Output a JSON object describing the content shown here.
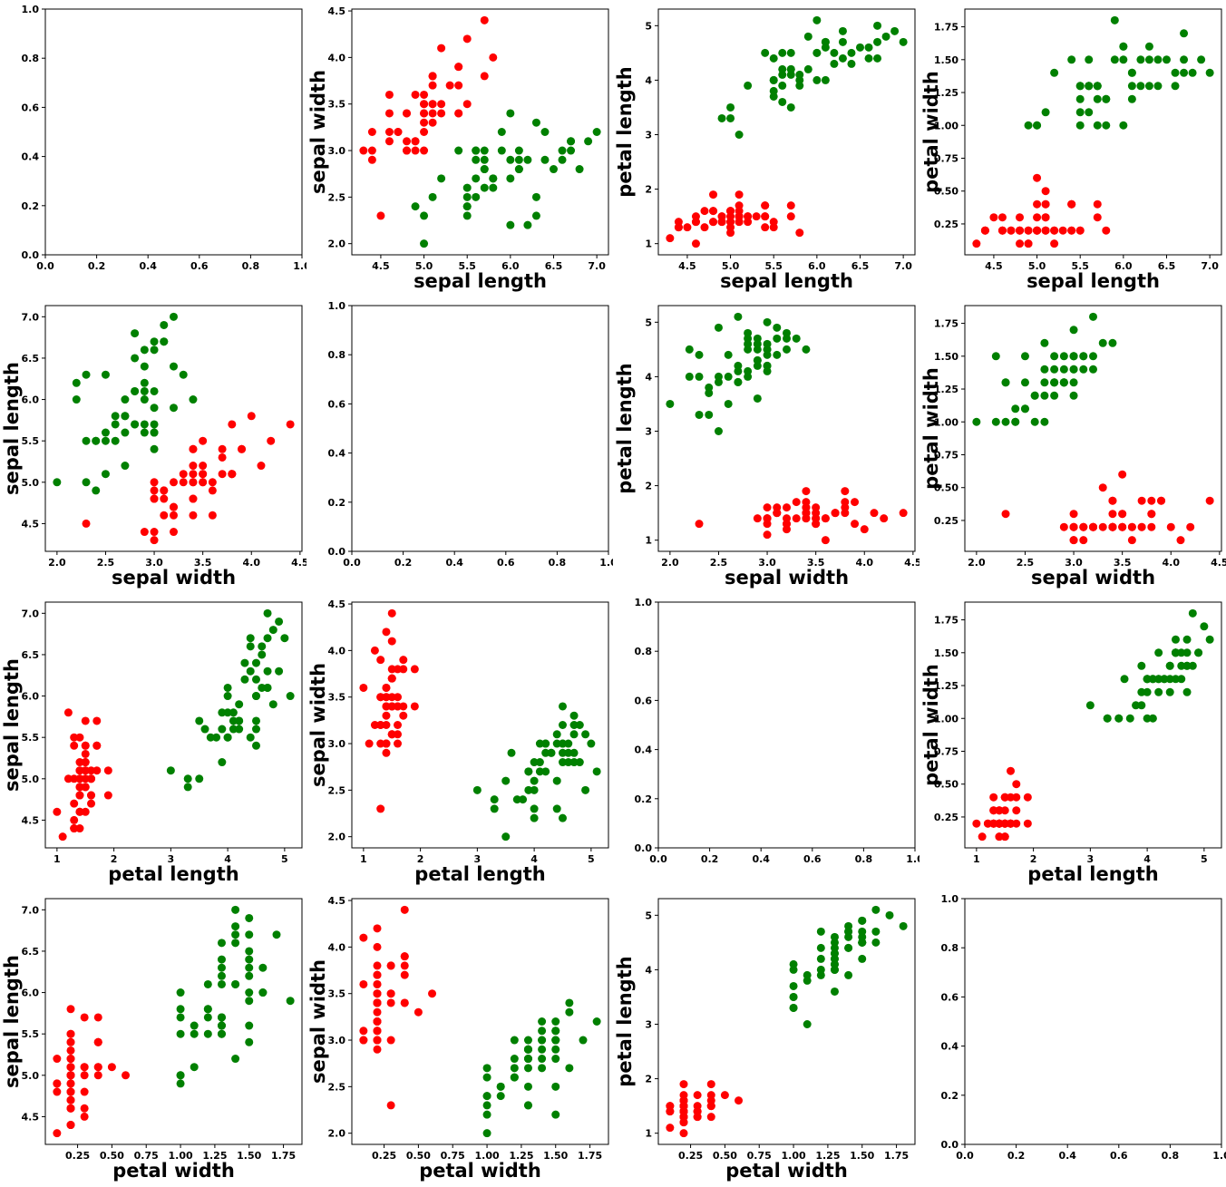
{
  "figure": {
    "title": "",
    "background": "#ffffff",
    "spine_color": "#000000",
    "tick_label_color": "#000000"
  },
  "chart_data": {
    "type": "scatter",
    "description": "4x4 scatter-plot matrix of iris features; row index selects x variable, column index selects y variable; diagonal cells are empty axes 0.0-1.0",
    "variables": [
      "sepal length",
      "sepal width",
      "petal length",
      "petal width"
    ],
    "axes": {
      "sepal length": {
        "lim": [
          4.165,
          7.135
        ],
        "ticks": [
          4.5,
          5.0,
          5.5,
          6.0,
          6.5,
          7.0
        ],
        "tick_labels": [
          "4.5",
          "5.0",
          "5.5",
          "6.0",
          "6.5",
          "7.0"
        ]
      },
      "sepal width": {
        "lim": [
          1.88,
          4.52
        ],
        "ticks": [
          2.0,
          2.5,
          3.0,
          3.5,
          4.0,
          4.5
        ],
        "tick_labels": [
          "2.0",
          "2.5",
          "3.0",
          "3.5",
          "4.0",
          "4.5"
        ]
      },
      "petal length": {
        "lim": [
          0.795,
          5.305
        ],
        "ticks": [
          1,
          2,
          3,
          4,
          5
        ],
        "tick_labels": [
          "1",
          "2",
          "3",
          "4",
          "5"
        ]
      },
      "petal width": {
        "lim": [
          0.015,
          1.885
        ],
        "ticks": [
          0.25,
          0.5,
          0.75,
          1.0,
          1.25,
          1.5,
          1.75
        ],
        "tick_labels": [
          "0.25",
          "0.50",
          "0.75",
          "1.00",
          "1.25",
          "1.50",
          "1.75"
        ]
      }
    },
    "empty_axis": {
      "lim": [
        0,
        1
      ],
      "ticks": [
        0.0,
        0.2,
        0.4,
        0.6,
        0.8,
        1.0
      ],
      "tick_labels": [
        "0.0",
        "0.2",
        "0.4",
        "0.6",
        "0.8",
        "1.0"
      ]
    },
    "layout": {
      "rows": 4,
      "cols": 4,
      "x_variable_by": "row",
      "y_variable_by": "col",
      "diagonal": "empty"
    },
    "series": [
      {
        "name": "class-red",
        "color": "#ff0000",
        "rows": [
          [
            5.1,
            3.5,
            1.4,
            0.2
          ],
          [
            4.9,
            3.0,
            1.4,
            0.2
          ],
          [
            4.7,
            3.2,
            1.3,
            0.2
          ],
          [
            4.6,
            3.1,
            1.5,
            0.2
          ],
          [
            5.0,
            3.6,
            1.4,
            0.2
          ],
          [
            5.4,
            3.9,
            1.7,
            0.4
          ],
          [
            4.6,
            3.4,
            1.4,
            0.3
          ],
          [
            5.0,
            3.4,
            1.5,
            0.2
          ],
          [
            4.4,
            2.9,
            1.4,
            0.2
          ],
          [
            4.9,
            3.1,
            1.5,
            0.1
          ],
          [
            5.4,
            3.7,
            1.5,
            0.2
          ],
          [
            4.8,
            3.4,
            1.6,
            0.2
          ],
          [
            4.8,
            3.0,
            1.4,
            0.1
          ],
          [
            4.3,
            3.0,
            1.1,
            0.1
          ],
          [
            5.8,
            4.0,
            1.2,
            0.2
          ],
          [
            5.7,
            4.4,
            1.5,
            0.4
          ],
          [
            5.4,
            3.9,
            1.3,
            0.4
          ],
          [
            5.1,
            3.5,
            1.4,
            0.3
          ],
          [
            5.7,
            3.8,
            1.7,
            0.3
          ],
          [
            5.1,
            3.8,
            1.5,
            0.3
          ],
          [
            5.4,
            3.4,
            1.7,
            0.2
          ],
          [
            5.1,
            3.7,
            1.5,
            0.4
          ],
          [
            4.6,
            3.6,
            1.0,
            0.2
          ],
          [
            5.1,
            3.3,
            1.7,
            0.5
          ],
          [
            4.8,
            3.4,
            1.9,
            0.2
          ],
          [
            5.0,
            3.0,
            1.6,
            0.2
          ],
          [
            5.0,
            3.4,
            1.6,
            0.4
          ],
          [
            5.2,
            3.5,
            1.5,
            0.2
          ],
          [
            5.2,
            3.4,
            1.4,
            0.2
          ],
          [
            4.7,
            3.2,
            1.6,
            0.2
          ],
          [
            4.8,
            3.1,
            1.6,
            0.2
          ],
          [
            5.4,
            3.4,
            1.5,
            0.4
          ],
          [
            5.2,
            4.1,
            1.5,
            0.1
          ],
          [
            5.5,
            4.2,
            1.4,
            0.2
          ],
          [
            4.9,
            3.1,
            1.5,
            0.2
          ],
          [
            5.0,
            3.2,
            1.2,
            0.2
          ],
          [
            5.5,
            3.5,
            1.3,
            0.2
          ],
          [
            4.9,
            3.6,
            1.4,
            0.1
          ],
          [
            4.4,
            3.0,
            1.3,
            0.2
          ],
          [
            5.1,
            3.4,
            1.5,
            0.2
          ],
          [
            5.0,
            3.5,
            1.3,
            0.3
          ],
          [
            4.5,
            2.3,
            1.3,
            0.3
          ],
          [
            4.4,
            3.2,
            1.3,
            0.2
          ],
          [
            5.0,
            3.5,
            1.6,
            0.6
          ],
          [
            5.1,
            3.8,
            1.9,
            0.4
          ],
          [
            4.8,
            3.0,
            1.4,
            0.3
          ],
          [
            5.1,
            3.8,
            1.6,
            0.2
          ],
          [
            4.6,
            3.2,
            1.4,
            0.2
          ],
          [
            5.3,
            3.7,
            1.5,
            0.2
          ],
          [
            5.0,
            3.3,
            1.4,
            0.2
          ]
        ]
      },
      {
        "name": "class-green",
        "color": "#008000",
        "rows": [
          [
            7.0,
            3.2,
            4.7,
            1.4
          ],
          [
            6.4,
            3.2,
            4.5,
            1.5
          ],
          [
            6.9,
            3.1,
            4.9,
            1.5
          ],
          [
            5.5,
            2.3,
            4.0,
            1.3
          ],
          [
            6.5,
            2.8,
            4.6,
            1.5
          ],
          [
            5.7,
            2.8,
            4.5,
            1.3
          ],
          [
            6.3,
            3.3,
            4.7,
            1.6
          ],
          [
            4.9,
            2.4,
            3.3,
            1.0
          ],
          [
            6.6,
            2.9,
            4.6,
            1.3
          ],
          [
            5.2,
            2.7,
            3.9,
            1.4
          ],
          [
            5.0,
            2.0,
            3.5,
            1.0
          ],
          [
            5.9,
            3.0,
            4.2,
            1.5
          ],
          [
            6.0,
            2.2,
            4.0,
            1.0
          ],
          [
            6.1,
            2.9,
            4.7,
            1.4
          ],
          [
            5.6,
            2.9,
            3.6,
            1.3
          ],
          [
            6.7,
            3.1,
            4.4,
            1.4
          ],
          [
            5.6,
            3.0,
            4.5,
            1.5
          ],
          [
            5.8,
            2.7,
            4.1,
            1.0
          ],
          [
            6.2,
            2.2,
            4.5,
            1.5
          ],
          [
            5.6,
            2.5,
            3.9,
            1.1
          ],
          [
            5.9,
            3.2,
            4.8,
            1.8
          ],
          [
            6.1,
            2.8,
            4.0,
            1.3
          ],
          [
            6.3,
            2.5,
            4.9,
            1.5
          ],
          [
            6.1,
            2.8,
            4.7,
            1.2
          ],
          [
            6.4,
            2.9,
            4.3,
            1.3
          ],
          [
            6.6,
            3.0,
            4.4,
            1.4
          ],
          [
            6.8,
            2.8,
            4.8,
            1.4
          ],
          [
            6.7,
            3.0,
            5.0,
            1.7
          ],
          [
            6.0,
            2.9,
            4.5,
            1.5
          ],
          [
            5.7,
            2.6,
            3.5,
            1.0
          ],
          [
            5.5,
            2.4,
            3.8,
            1.1
          ],
          [
            5.5,
            2.4,
            3.7,
            1.0
          ],
          [
            5.8,
            2.7,
            3.9,
            1.2
          ],
          [
            6.0,
            2.7,
            5.1,
            1.6
          ],
          [
            5.4,
            3.0,
            4.5,
            1.5
          ],
          [
            6.0,
            3.4,
            4.5,
            1.6
          ],
          [
            6.7,
            3.1,
            4.7,
            1.5
          ],
          [
            6.3,
            2.3,
            4.4,
            1.3
          ],
          [
            5.6,
            3.0,
            4.1,
            1.3
          ],
          [
            5.5,
            2.5,
            4.0,
            1.3
          ],
          [
            5.5,
            2.6,
            4.4,
            1.2
          ],
          [
            6.1,
            3.0,
            4.6,
            1.4
          ],
          [
            5.8,
            2.6,
            4.0,
            1.2
          ],
          [
            5.0,
            2.3,
            3.3,
            1.0
          ],
          [
            5.6,
            2.7,
            4.2,
            1.3
          ],
          [
            5.7,
            3.0,
            4.2,
            1.2
          ],
          [
            5.7,
            2.9,
            4.2,
            1.3
          ],
          [
            6.2,
            2.9,
            4.3,
            1.3
          ],
          [
            5.1,
            2.5,
            3.0,
            1.1
          ],
          [
            5.7,
            2.8,
            4.1,
            1.3
          ]
        ]
      }
    ]
  }
}
